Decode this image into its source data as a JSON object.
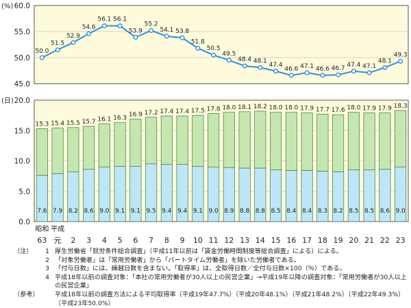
{
  "chart_data": [
    {
      "type": "line",
      "unit_label": "(%)",
      "ylim": [
        45.0,
        60.0
      ],
      "yticks": [
        "45.0",
        "50.0",
        "55.0",
        "60.0"
      ],
      "values": [
        50.0,
        51.5,
        52.9,
        54.6,
        56.1,
        56.1,
        53.9,
        55.2,
        54.1,
        53.8,
        51.8,
        50.5,
        49.5,
        48.4,
        48.1,
        47.4,
        46.6,
        47.1,
        46.6,
        46.7,
        47.4,
        47.1,
        48.1,
        49.3
      ],
      "labels": [
        "50.0",
        "51.5",
        "52.9",
        "54.6",
        "56.1",
        "56.1",
        "53.9",
        "55.2",
        "54.1",
        "53.8",
        "51.8",
        "50.5",
        "49.5",
        "48.4",
        "48.1",
        "47.4",
        "46.6",
        "47.1",
        "46.6",
        "46.7",
        "47.4",
        "47.1",
        "48.1",
        "49.3"
      ],
      "grid": true,
      "colors": {
        "line": "#2b90e0",
        "marker_fill": "#ffffff",
        "background": "#fdfbdc",
        "grid": "#c8c8c8"
      }
    },
    {
      "type": "bar",
      "stacked": true,
      "unit_label": "(日)",
      "ylim": [
        0.0,
        20.0
      ],
      "yticks": [
        "0.0",
        "5.0",
        "10.0",
        "15.0",
        "20.0"
      ],
      "series": [
        {
          "values": [
            7.6,
            7.9,
            8.2,
            8.6,
            9.0,
            9.1,
            9.1,
            9.5,
            9.4,
            9.4,
            9.1,
            9.0,
            8.9,
            8.8,
            8.8,
            8.5,
            8.4,
            8.4,
            8.3,
            8.2,
            8.5,
            8.5,
            8.6,
            9.0
          ],
          "labels": [
            "7.6",
            "7.9",
            "8.2",
            "8.6",
            "9.0",
            "9.1",
            "9.1",
            "9.5",
            "9.4",
            "9.4",
            "9.1",
            "9.0",
            "8.9",
            "8.8",
            "8.8",
            "8.5",
            "8.4",
            "8.4",
            "8.3",
            "8.2",
            "8.5",
            "8.5",
            "8.6",
            "9.0"
          ],
          "color": "#bde6f8"
        },
        {
          "totals": [
            15.3,
            15.4,
            15.5,
            15.7,
            16.1,
            16.3,
            16.9,
            17.2,
            17.4,
            17.4,
            17.5,
            17.8,
            18.0,
            18.1,
            18.2,
            18.0,
            18.0,
            17.9,
            17.7,
            17.6,
            18.0,
            17.9,
            17.9,
            18.3
          ],
          "labels": [
            "15.3",
            "15.4",
            "15.5",
            "15.7",
            "16.1",
            "16.3",
            "16.9",
            "17.2",
            "17.4",
            "17.4",
            "17.5",
            "17.8",
            "18.0",
            "18.1",
            "18.2",
            "18.0",
            "18.0",
            "17.9",
            "17.7",
            "17.6",
            "18.0",
            "17.9",
            "17.9",
            "18.3"
          ],
          "color": "#c5e6b1"
        }
      ],
      "colors": {
        "background": "#fdfbdc",
        "grid": "#c8c8c8",
        "bar_border": "#3a7a3a"
      }
    }
  ],
  "x_axis": {
    "era_labels": [
      "昭和",
      "平成"
    ],
    "categories": [
      "63",
      "元",
      "2",
      "3",
      "4",
      "5",
      "6",
      "7",
      "8",
      "9",
      "10",
      "11",
      "12",
      "13",
      "14",
      "15",
      "16",
      "17",
      "18",
      "19",
      "20",
      "21",
      "22",
      "23"
    ]
  },
  "notes": [
    {
      "tag": "（注）",
      "num": "1",
      "text": "厚生労働省「就労条件総合調査」（平成11年以前は「賃金労働時間制度等総合調査」による）による。"
    },
    {
      "tag": "",
      "num": "2",
      "text": "「対象労働者」は「常用労働者」から「パートタイム労働者」を除いた労働者である。"
    },
    {
      "tag": "",
      "num": "3",
      "text": "「付与日数」には、繰越日数を含まない。「取得率」は、全取得日数／全付与日数×100（％）である。"
    },
    {
      "tag": "",
      "num": "4",
      "text": "平成18年以前の調査対象：「本社の常用労働者が30人以上の民営企業」→平成19年以降の調査対象：「常用労働者が30人以上の民営企業」"
    },
    {
      "tag": "（参考）",
      "num": "",
      "text": "平成18年以前の調査方法による平均取得率（平成19年47.7%）（平成20年48.1%）（平成21年48.2%）（平成22年49.3%）（平成23年50.0%）"
    }
  ]
}
